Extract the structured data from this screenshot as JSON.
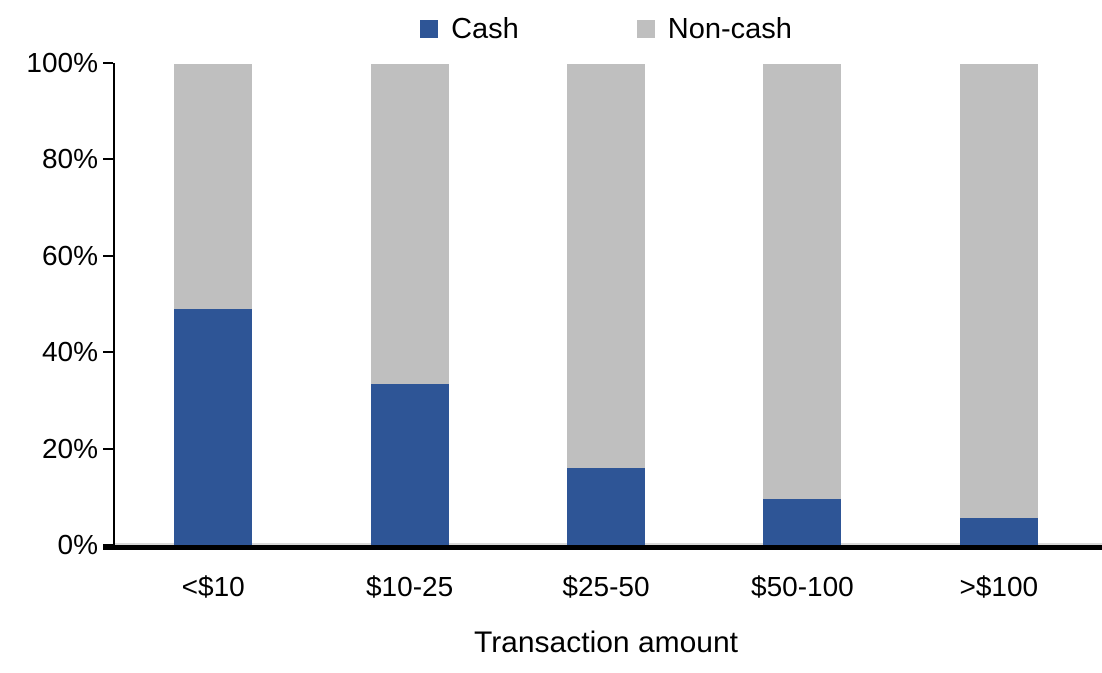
{
  "chart_data": {
    "type": "bar",
    "stacked": true,
    "percent_stacked": true,
    "title": "",
    "xlabel": "Transaction amount",
    "ylabel": "",
    "categories": [
      "<$10",
      "$10-25",
      "$25-50",
      "$50-100",
      ">$100"
    ],
    "series": [
      {
        "name": "Cash",
        "color": "#2E5596",
        "values": [
          49,
          33.5,
          16,
          9.5,
          5.5
        ]
      },
      {
        "name": "Non-cash",
        "color": "#BFBFBF",
        "values": [
          51,
          66.5,
          84,
          90.5,
          94.5
        ]
      }
    ],
    "ylim": [
      0,
      100
    ],
    "ytick_labels": [
      "0%",
      "20%",
      "40%",
      "60%",
      "80%",
      "100%"
    ],
    "ytick_values": [
      0,
      20,
      40,
      60,
      80,
      100
    ],
    "legend_position": "top",
    "grid": "off",
    "axis_color": "#000000",
    "baseline_color": "#D9D9D9",
    "text_color": "#000000"
  }
}
